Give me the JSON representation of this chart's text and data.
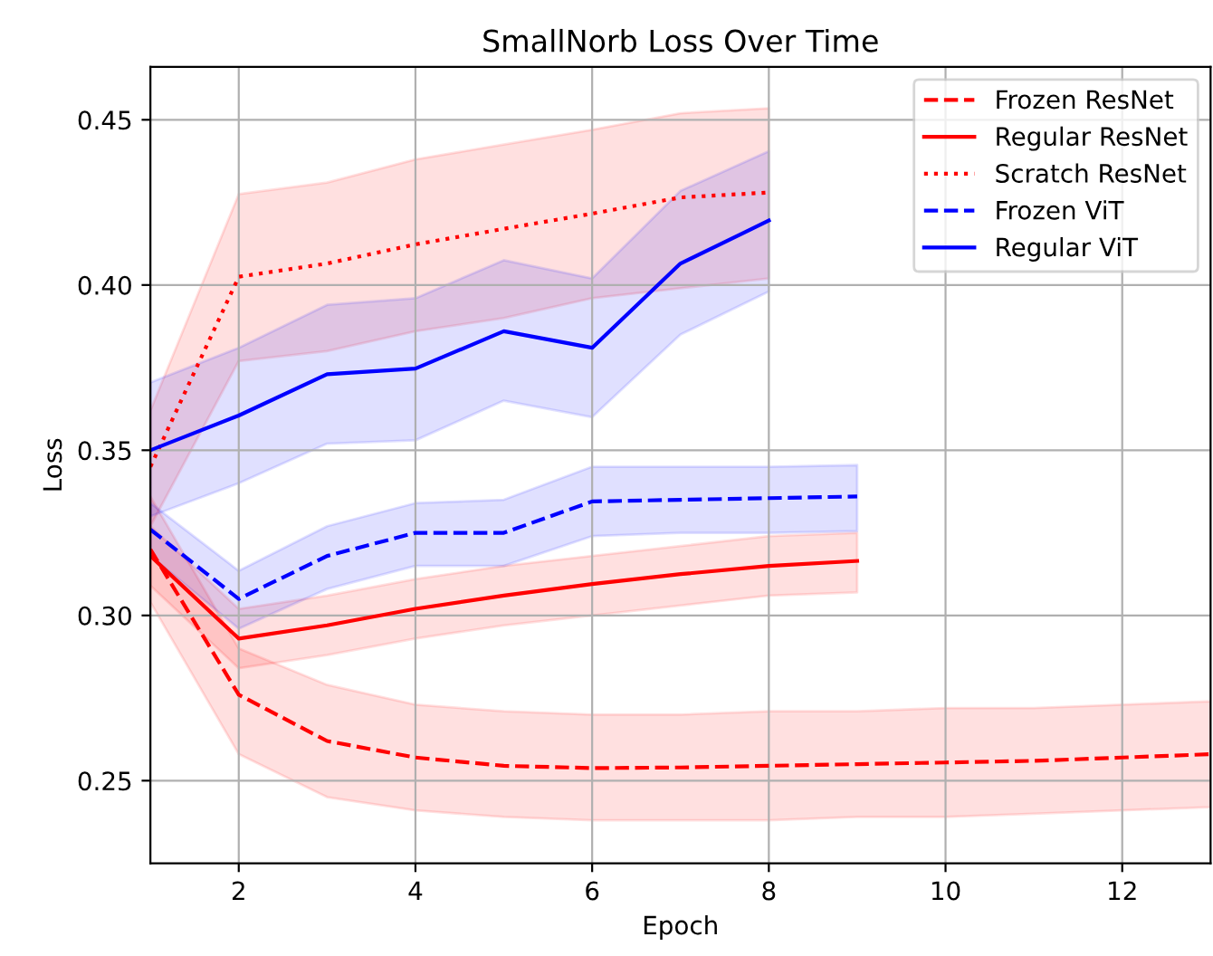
{
  "chart_data": {
    "type": "line",
    "title": "SmallNorb Loss Over Time",
    "xlabel": "Epoch",
    "ylabel": "Loss",
    "xlim": [
      1,
      13
    ],
    "ylim": [
      0.225,
      0.466
    ],
    "xticks": [
      2,
      4,
      6,
      8,
      10,
      12
    ],
    "yticks": [
      0.25,
      {
        "value": 0.3,
        "label": "0.30"
      },
      0.35,
      {
        "value": 0.4,
        "label": "0.40"
      },
      0.45
    ],
    "grid": true,
    "legend": "top right",
    "series": [
      {
        "name": "Frozen ResNet",
        "color": "#ff0000",
        "line_style": "dashed",
        "x": [
          1,
          2,
          3,
          4,
          5,
          6,
          7,
          8,
          9,
          10,
          11,
          12,
          13
        ],
        "values": [
          0.32,
          0.276,
          0.262,
          0.257,
          0.2545,
          0.2538,
          0.254,
          0.2545,
          0.255,
          0.2555,
          0.256,
          0.257,
          0.258
        ],
        "lower": [
          0.304,
          0.258,
          0.245,
          0.241,
          0.239,
          0.238,
          0.238,
          0.238,
          0.239,
          0.239,
          0.24,
          0.241,
          0.242
        ],
        "upper": [
          0.336,
          0.29,
          0.279,
          0.273,
          0.271,
          0.27,
          0.27,
          0.271,
          0.271,
          0.272,
          0.272,
          0.273,
          0.274
        ]
      },
      {
        "name": "Regular ResNet",
        "color": "#ff0000",
        "line_style": "solid",
        "x": [
          1,
          2,
          3,
          4,
          5,
          6,
          7,
          8,
          9
        ],
        "values": [
          0.318,
          0.293,
          0.297,
          0.302,
          0.306,
          0.3095,
          0.3125,
          0.315,
          0.3165
        ],
        "lower": [
          0.309,
          0.284,
          0.288,
          0.293,
          0.297,
          0.3,
          0.303,
          0.306,
          0.307
        ],
        "upper": [
          0.327,
          0.302,
          0.306,
          0.311,
          0.315,
          0.318,
          0.321,
          0.324,
          0.325
        ]
      },
      {
        "name": "Scratch ResNet",
        "color": "#ff0000",
        "line_style": "dotted",
        "x": [
          1,
          2,
          3,
          4,
          5,
          6,
          7,
          8
        ],
        "values": [
          0.345,
          0.4025,
          0.4065,
          0.4123,
          0.417,
          0.4216,
          0.4265,
          0.428
        ],
        "lower": [
          0.327,
          0.377,
          0.38,
          0.386,
          0.39,
          0.396,
          0.399,
          0.402
        ],
        "upper": [
          0.362,
          0.4275,
          0.431,
          0.438,
          0.4425,
          0.447,
          0.452,
          0.4535
        ]
      },
      {
        "name": "Frozen ViT",
        "color": "#0000ff",
        "line_style": "dashed",
        "x": [
          1,
          2,
          3,
          4,
          5,
          6,
          7,
          8,
          9
        ],
        "values": [
          0.326,
          0.305,
          0.318,
          0.325,
          0.325,
          0.3345,
          0.335,
          0.3355,
          0.336
        ],
        "lower": [
          0.318,
          0.296,
          0.308,
          0.315,
          0.315,
          0.324,
          0.325,
          0.325,
          0.3255
        ],
        "upper": [
          0.334,
          0.3135,
          0.327,
          0.334,
          0.335,
          0.345,
          0.345,
          0.345,
          0.3455
        ]
      },
      {
        "name": "Regular ViT",
        "color": "#0000ff",
        "line_style": "solid",
        "x": [
          1,
          2,
          3,
          4,
          5,
          6,
          7,
          8
        ],
        "values": [
          0.35,
          0.3605,
          0.373,
          0.3747,
          0.386,
          0.381,
          0.4065,
          0.4195
        ],
        "lower": [
          0.33,
          0.34,
          0.352,
          0.353,
          0.365,
          0.36,
          0.385,
          0.398
        ],
        "upper": [
          0.3705,
          0.381,
          0.394,
          0.396,
          0.4075,
          0.402,
          0.4285,
          0.4405
        ]
      }
    ]
  }
}
